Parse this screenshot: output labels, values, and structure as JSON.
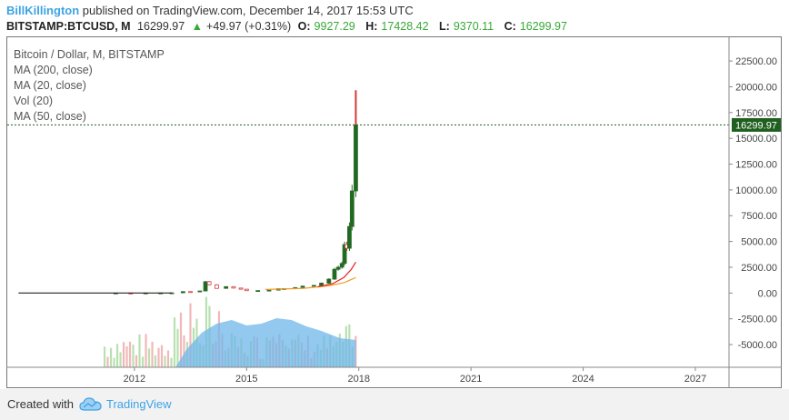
{
  "header": {
    "username": "BillKillington",
    "published_text": "published on TradingView.com, December 14, 2017 15:53 UTC",
    "symbol": "BITSTAMP:BTCUSD, M",
    "last": "16299.97",
    "change": "+49.97 (+0.31%)",
    "o_label": "O:",
    "o_value": "9927.29",
    "h_label": "H:",
    "h_value": "17428.42",
    "l_label": "L:",
    "l_value": "9370.11",
    "c_label": "C:",
    "c_value": "16299.97"
  },
  "legend": {
    "series_title": "Bitcoin / Dollar, M, BITSTAMP",
    "indicators": [
      "MA (200, close)",
      "MA (20, close)",
      "Vol (20)",
      "MA (50, close)"
    ]
  },
  "price_tag": "16299.97",
  "footer": {
    "created_with": "Created with",
    "brand": "TradingView"
  },
  "colors": {
    "accent": "#3da2e5",
    "up": "#37a937",
    "candle_up": "#2e6b2e",
    "candle_down": "#d43a3a",
    "ma20": "#e52020",
    "ma50": "#f39c2a",
    "volume_fill": "#6fb7ea",
    "price_tag_bg": "#1f5f1f"
  },
  "chart_data": {
    "type": "candlestick",
    "y_ticks": [
      "22500.00",
      "20000.00",
      "17500.00",
      "15000.00",
      "12500.00",
      "10000.00",
      "7500.00",
      "5000.00",
      "2500.00",
      "0.00",
      "-2500.00",
      "-5000.00"
    ],
    "y_tick_values": [
      22500,
      20000,
      17500,
      15000,
      12500,
      10000,
      7500,
      5000,
      2500,
      0,
      -2500,
      -5000
    ],
    "x_ticks": [
      "2012",
      "2015",
      "2018",
      "2021",
      "2024",
      "2027"
    ],
    "x_tick_values": [
      2012,
      2015,
      2018,
      2021,
      2024,
      2027
    ],
    "x_range": [
      2008.6,
      2027.9
    ],
    "y_range": [
      -7200,
      24800
    ],
    "last_price": 16299.97,
    "closes": [
      {
        "t": 2011.5,
        "c": 5
      },
      {
        "t": 2011.9,
        "c": 4
      },
      {
        "t": 2012.3,
        "c": 5
      },
      {
        "t": 2012.7,
        "c": 12
      },
      {
        "t": 2013.0,
        "c": 20
      },
      {
        "t": 2013.3,
        "c": 140
      },
      {
        "t": 2013.5,
        "c": 110
      },
      {
        "t": 2013.75,
        "c": 200
      },
      {
        "t": 2013.9,
        "c": 1100
      },
      {
        "t": 2014.0,
        "c": 800
      },
      {
        "t": 2014.2,
        "c": 450
      },
      {
        "t": 2014.45,
        "c": 620
      },
      {
        "t": 2014.65,
        "c": 480
      },
      {
        "t": 2014.85,
        "c": 370
      },
      {
        "t": 2015.0,
        "c": 230
      },
      {
        "t": 2015.3,
        "c": 240
      },
      {
        "t": 2015.6,
        "c": 280
      },
      {
        "t": 2015.85,
        "c": 420
      },
      {
        "t": 2016.0,
        "c": 430
      },
      {
        "t": 2016.3,
        "c": 530
      },
      {
        "t": 2016.5,
        "c": 670
      },
      {
        "t": 2016.8,
        "c": 740
      },
      {
        "t": 2017.0,
        "c": 960
      },
      {
        "t": 2017.2,
        "c": 1350
      },
      {
        "t": 2017.35,
        "c": 2300
      },
      {
        "t": 2017.45,
        "c": 2500
      },
      {
        "t": 2017.55,
        "c": 2870
      },
      {
        "t": 2017.62,
        "c": 4700
      },
      {
        "t": 2017.68,
        "c": 4340
      },
      {
        "t": 2017.75,
        "c": 6450
      },
      {
        "t": 2017.82,
        "c": 9900
      },
      {
        "t": 2017.92,
        "c": 16299.97
      }
    ],
    "ma20": [
      {
        "t": 2016.9,
        "c": 600
      },
      {
        "t": 2017.3,
        "c": 900
      },
      {
        "t": 2017.6,
        "c": 1500
      },
      {
        "t": 2017.8,
        "c": 2300
      },
      {
        "t": 2017.92,
        "c": 3000
      }
    ],
    "ma50": [
      {
        "t": 2015.5,
        "c": 350
      },
      {
        "t": 2016.5,
        "c": 450
      },
      {
        "t": 2017.2,
        "c": 700
      },
      {
        "t": 2017.6,
        "c": 1000
      },
      {
        "t": 2017.92,
        "c": 1500
      }
    ]
  }
}
